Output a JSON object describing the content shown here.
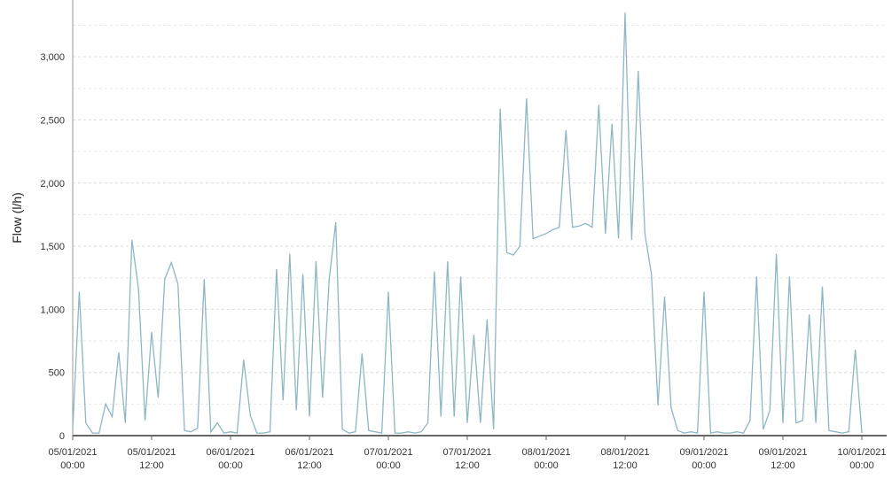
{
  "chart_data": {
    "type": "line",
    "y_label": "Flow (l/h)",
    "x": [
      0,
      1,
      2,
      3,
      4,
      5,
      6,
      7,
      8,
      9,
      10,
      11,
      12,
      13,
      14,
      15,
      16,
      17,
      18,
      19,
      20,
      21,
      22,
      23,
      24,
      25,
      26,
      27,
      28,
      29,
      30,
      31,
      32,
      33,
      34,
      35,
      36,
      37,
      38,
      39,
      40,
      41,
      42,
      43,
      44,
      45,
      46,
      47,
      48,
      49,
      50,
      51,
      52,
      53,
      54,
      55,
      56,
      57,
      58,
      59,
      60,
      61,
      62,
      63,
      64,
      65,
      66,
      67,
      68,
      69,
      70,
      71,
      72,
      73,
      74,
      75,
      76,
      77,
      78,
      79,
      80,
      81,
      82,
      83,
      84,
      85,
      86,
      87,
      88,
      89,
      90,
      91,
      92,
      93,
      94,
      95,
      96,
      97,
      98,
      99,
      100,
      101,
      102,
      103,
      104,
      105,
      106,
      107,
      108,
      109,
      110,
      111,
      112,
      113,
      114,
      115,
      116,
      117,
      118,
      119,
      120
    ],
    "series": [
      {
        "name": "Flow",
        "color": "#8db7c3",
        "values": [
          50,
          1140,
          100,
          20,
          20,
          250,
          150,
          660,
          100,
          1550,
          1160,
          120,
          820,
          300,
          1240,
          1370,
          1200,
          40,
          30,
          60,
          1240,
          30,
          100,
          20,
          30,
          20,
          600,
          160,
          20,
          20,
          30,
          1320,
          280,
          1440,
          200,
          1280,
          150,
          1380,
          300,
          1240,
          1690,
          50,
          20,
          30,
          650,
          40,
          30,
          20,
          1140,
          20,
          20,
          30,
          20,
          30,
          100,
          1300,
          150,
          1380,
          150,
          1260,
          100,
          800,
          100,
          920,
          50,
          2590,
          1450,
          1430,
          1500,
          2670,
          1560,
          1580,
          1600,
          1630,
          1650,
          2420,
          1650,
          1660,
          1680,
          1650,
          2620,
          1600,
          2470,
          1560,
          3350,
          1550,
          2890,
          1600,
          1280,
          240,
          1100,
          220,
          40,
          20,
          30,
          20,
          1140,
          20,
          30,
          20,
          20,
          30,
          20,
          120,
          1260,
          50,
          200,
          1440,
          100,
          1260,
          100,
          120,
          960,
          100,
          1180,
          40,
          30,
          20,
          30,
          680,
          20
        ]
      }
    ],
    "xlim": [
      0,
      120
    ],
    "xticks": [
      {
        "value": 0,
        "label": [
          "05/01/2021",
          "00:00"
        ]
      },
      {
        "value": 12,
        "label": [
          "05/01/2021",
          "12:00"
        ]
      },
      {
        "value": 24,
        "label": [
          "06/01/2021",
          "00:00"
        ]
      },
      {
        "value": 36,
        "label": [
          "06/01/2021",
          "12:00"
        ]
      },
      {
        "value": 48,
        "label": [
          "07/01/2021",
          "00:00"
        ]
      },
      {
        "value": 60,
        "label": [
          "07/01/2021",
          "12:00"
        ]
      },
      {
        "value": 72,
        "label": [
          "08/01/2021",
          "00:00"
        ]
      },
      {
        "value": 84,
        "label": [
          "08/01/2021",
          "12:00"
        ]
      },
      {
        "value": 96,
        "label": [
          "09/01/2021",
          "00:00"
        ]
      },
      {
        "value": 108,
        "label": [
          "09/01/2021",
          "12:00"
        ]
      },
      {
        "value": 120,
        "label": [
          "10/01/2021",
          "00:00"
        ]
      }
    ],
    "ylim": [
      0,
      3450
    ],
    "yticks": [
      0,
      500,
      {
        "value": 1000,
        "label": "1,000"
      },
      {
        "value": 1500,
        "label": "1,500"
      },
      {
        "value": 2000,
        "label": "2,000"
      },
      {
        "value": 2500,
        "label": "2,500"
      },
      {
        "value": 3000,
        "label": "3,000"
      }
    ],
    "minor_yticks": [
      250,
      750,
      1250,
      1750,
      2250,
      2750,
      3250
    ],
    "grid": true
  }
}
